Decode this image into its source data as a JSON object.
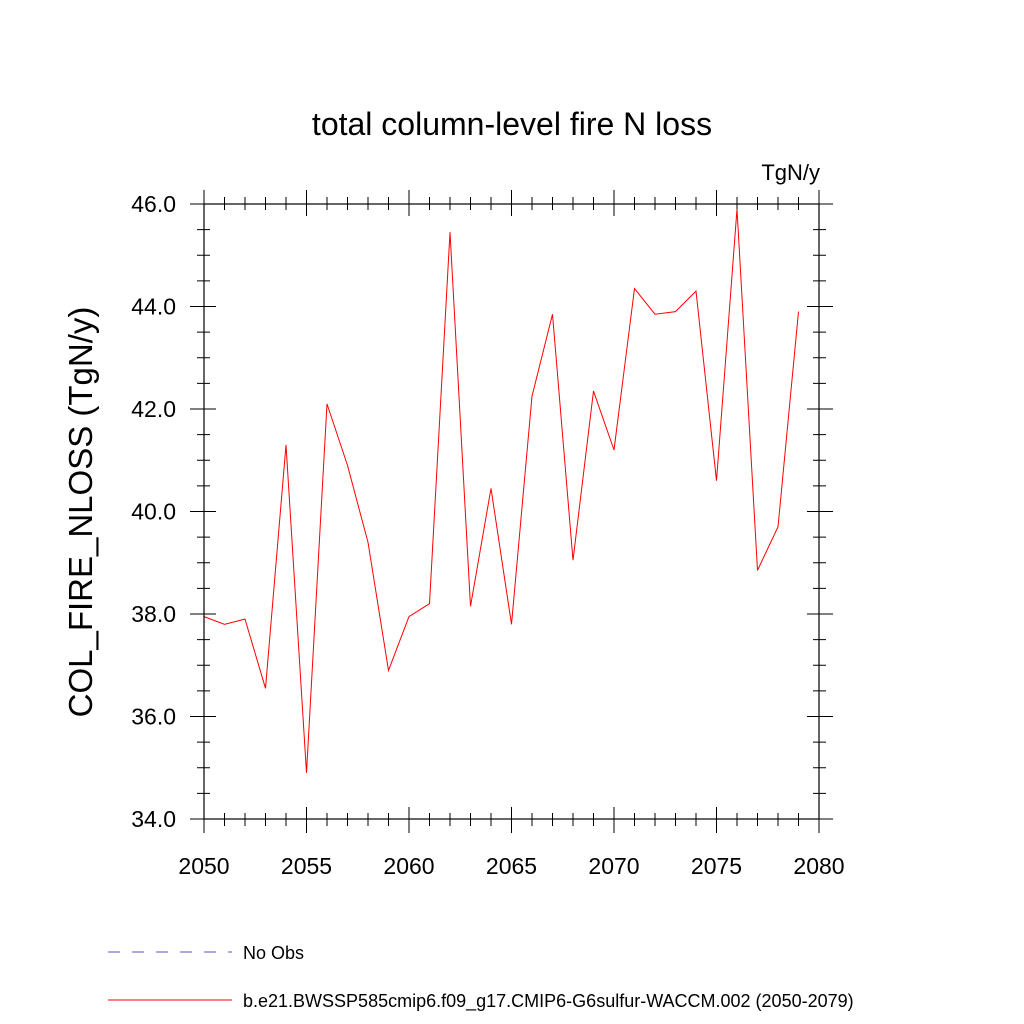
{
  "chart_data": {
    "type": "line",
    "title": "total column-level fire N loss",
    "units_label": "TgN/y",
    "ylabel": "COL_FIRE_NLOSS  (TgN/y)",
    "xlabel": "",
    "xlim": [
      2050,
      2080
    ],
    "ylim": [
      34.0,
      46.0
    ],
    "x_ticks": [
      2050,
      2055,
      2060,
      2065,
      2070,
      2075,
      2080
    ],
    "y_ticks": [
      34.0,
      36.0,
      38.0,
      40.0,
      42.0,
      44.0,
      46.0
    ],
    "x_tick_labels": [
      "2050",
      "2055",
      "2060",
      "2065",
      "2070",
      "2075",
      "2080"
    ],
    "y_tick_labels": [
      "34.0",
      "36.0",
      "38.0",
      "40.0",
      "42.0",
      "44.0",
      "46.0"
    ],
    "grid": false,
    "legend_position": "bottom",
    "series": [
      {
        "name": "b.e21.BWSSP585cmip6.f09_g17.CMIP6-G6sulfur-WACCM.002 (2050-2079)",
        "color": "#ff0000",
        "style": "solid",
        "x": [
          2050,
          2051,
          2052,
          2053,
          2054,
          2055,
          2056,
          2057,
          2058,
          2059,
          2060,
          2061,
          2062,
          2063,
          2064,
          2065,
          2066,
          2067,
          2068,
          2069,
          2070,
          2071,
          2072,
          2073,
          2074,
          2075,
          2076,
          2077,
          2078,
          2079
        ],
        "values": [
          37.95,
          37.8,
          37.9,
          36.55,
          41.3,
          34.9,
          42.1,
          40.9,
          39.4,
          36.9,
          37.95,
          38.2,
          45.45,
          38.15,
          40.45,
          37.8,
          42.25,
          43.85,
          39.05,
          42.35,
          41.2,
          44.35,
          43.85,
          43.9,
          44.3,
          40.6,
          45.9,
          38.85,
          39.7,
          43.9
        ]
      }
    ],
    "legend": [
      {
        "label": "No Obs",
        "color": "#5b50c0",
        "style": "dashed"
      },
      {
        "label": "b.e21.BWSSP585cmip6.f09_g17.CMIP6-G6sulfur-WACCM.002 (2050-2079)",
        "color": "#ff0000",
        "style": "solid"
      }
    ]
  }
}
